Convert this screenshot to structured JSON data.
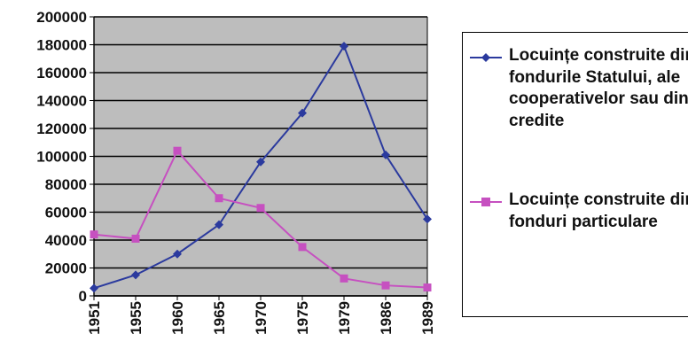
{
  "chart_data": {
    "type": "line",
    "categories": [
      "1951",
      "1955",
      "1960",
      "1965",
      "1970",
      "1975",
      "1979",
      "1986",
      "1989"
    ],
    "ylim": [
      0,
      200000
    ],
    "yticks": [
      "0",
      "20000",
      "40000",
      "60000",
      "80000",
      "100000",
      "120000",
      "140000",
      "160000",
      "180000",
      "200000"
    ],
    "grid": true,
    "legend_position": "right",
    "series": [
      {
        "name": "Locuințe construite din fondurile Statului, ale cooperativelor sau din credite",
        "color": "#2b3a9e",
        "marker": "diamond",
        "values": [
          5500,
          15000,
          30000,
          51000,
          96000,
          131000,
          179000,
          101000,
          55000
        ]
      },
      {
        "name": "Locuințe construite din fonduri particulare",
        "color": "#c650c0",
        "marker": "square",
        "values": [
          44000,
          41000,
          104000,
          70000,
          63000,
          35000,
          12500,
          7500,
          6000
        ]
      }
    ]
  }
}
